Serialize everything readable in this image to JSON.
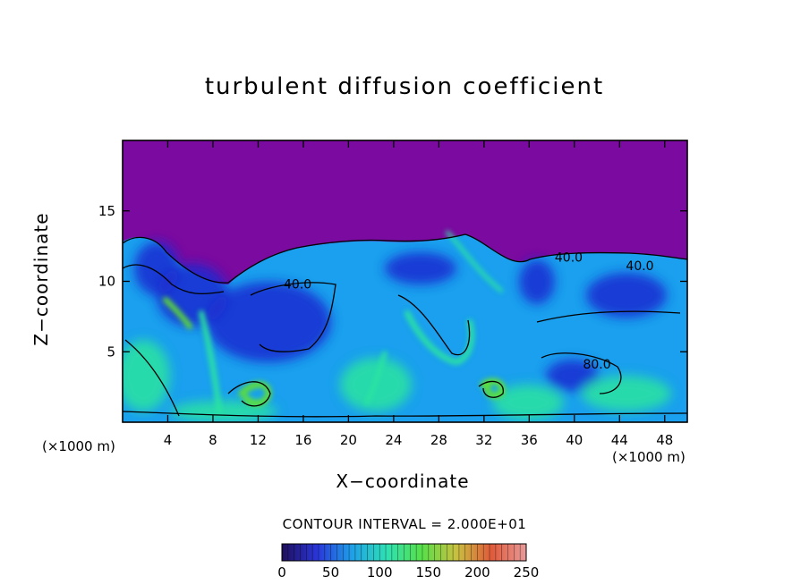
{
  "chart_data": {
    "type": "heatmap",
    "title": "turbulent diffusion coefficient",
    "xlabel": "X−coordinate",
    "ylabel": "Z−coordinate",
    "x_unit_left": "(×1000 m)",
    "x_unit_right": "(×1000 m)",
    "xlim": [
      0,
      50
    ],
    "ylim": [
      0,
      20
    ],
    "x_ticks": [
      4,
      8,
      12,
      16,
      20,
      24,
      28,
      32,
      36,
      40,
      44,
      48
    ],
    "y_ticks": [
      5,
      10,
      15
    ],
    "contour_interval_text": "CONTOUR INTERVAL = 2.000E+01",
    "contour_labels": [
      {
        "text": "40.0",
        "x": 15.5,
        "z": 9.5
      },
      {
        "text": "40.0",
        "x": 39.5,
        "z": 11.4
      },
      {
        "text": "40.0",
        "x": 45.8,
        "z": 10.8
      },
      {
        "text": "80.0",
        "x": 42.0,
        "z": 3.8
      }
    ],
    "colorbar": {
      "range": [
        0,
        250
      ],
      "ticks": [
        0,
        50,
        100,
        150,
        200,
        250
      ],
      "colors": [
        "#1e0f5a",
        "#2a35d8",
        "#1f9fe8",
        "#2ee0b4",
        "#57e04a",
        "#c8c040",
        "#e05a3a",
        "#e89a9a"
      ]
    },
    "colors": {
      "background_top": "#7b0aa0",
      "field_low": "#1a2ad0",
      "field_mid": "#1aa0ee",
      "field_high": "#2ae4a0",
      "field_peak": "#60e030",
      "contour_line": "#000000"
    }
  }
}
